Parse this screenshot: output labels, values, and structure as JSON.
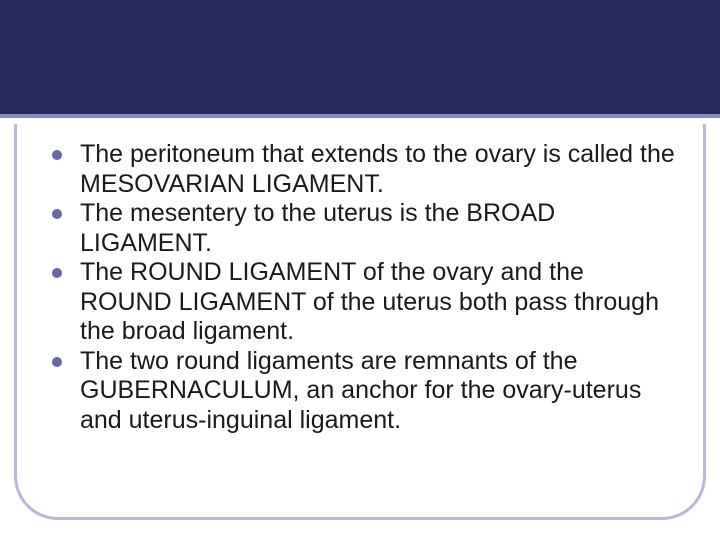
{
  "slide": {
    "header_band_color": "#2a2a5c",
    "header_underline_color": "#8a8ac8",
    "frame_border_color": "#b8b8dc",
    "bullet_color": "#6666a8",
    "text_color": "#1a1a1a",
    "font_size_pt": 25,
    "bullets": [
      "The peritoneum that extends to the ovary is called the MESOVARIAN LIGAMENT.",
      "The mesentery to the uterus is the BROAD LIGAMENT.",
      "The ROUND LIGAMENT of the ovary and the ROUND LIGAMENT of the uterus both pass through the broad ligament.",
      "The two round ligaments are remnants of the GUBERNACULUM, an anchor for the ovary-uterus and uterus-inguinal ligament."
    ]
  }
}
